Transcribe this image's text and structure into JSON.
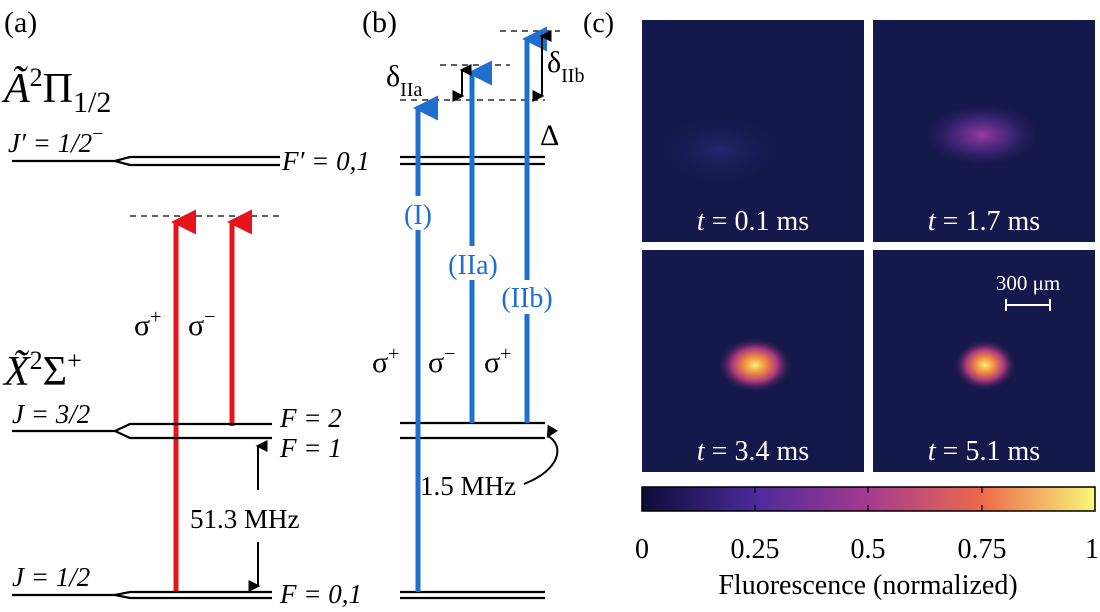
{
  "panel_a": {
    "label": "(a)",
    "excited": {
      "symbol": "Ã",
      "sup": "2",
      "term": "Π",
      "sub": "1/2"
    },
    "excited_level": {
      "J": "J′ = 1/2",
      "parity": "−",
      "F": "F′ = 0,1"
    },
    "ground": {
      "symbol": "X̃",
      "sup": "2",
      "term": "Σ",
      "sup2": "+"
    },
    "upper_level": {
      "J": "J = 3/2",
      "F_upper": "F = 2",
      "F_lower": "F = 1"
    },
    "lower_level": {
      "J": "J = 1/2",
      "F": "F = 0,1"
    },
    "splitting": "51.3 MHz",
    "beams": [
      {
        "pol": "σ",
        "sign": "+"
      },
      {
        "pol": "σ",
        "sign": "−"
      }
    ]
  },
  "panel_b": {
    "label": "(b)",
    "detunings": [
      {
        "symbol": "δ",
        "sub": "IIa"
      },
      {
        "symbol": "δ",
        "sub": "IIb"
      }
    ],
    "Delta": "Δ",
    "beams": [
      {
        "name": "(I)",
        "pol": "σ",
        "sign": "+"
      },
      {
        "name": "(IIa)",
        "pol": "σ",
        "sign": "−"
      },
      {
        "name": "(IIb)",
        "pol": "σ",
        "sign": "+"
      }
    ],
    "splitting": "1.5 MHz"
  },
  "panel_c": {
    "label": "(c)",
    "images": [
      {
        "t": "t",
        "rest": " = 0.1 ms"
      },
      {
        "t": "t",
        "rest": " = 1.7 ms"
      },
      {
        "t": "t",
        "rest": " = 3.4 ms"
      },
      {
        "t": "t",
        "rest": " = 5.1 ms"
      }
    ],
    "scale_bar": "300 μm",
    "colorbar": {
      "ticks": [
        "0",
        "0.25",
        "0.5",
        "0.75",
        "1"
      ],
      "label": "Fluorescence (normalized)"
    }
  }
}
